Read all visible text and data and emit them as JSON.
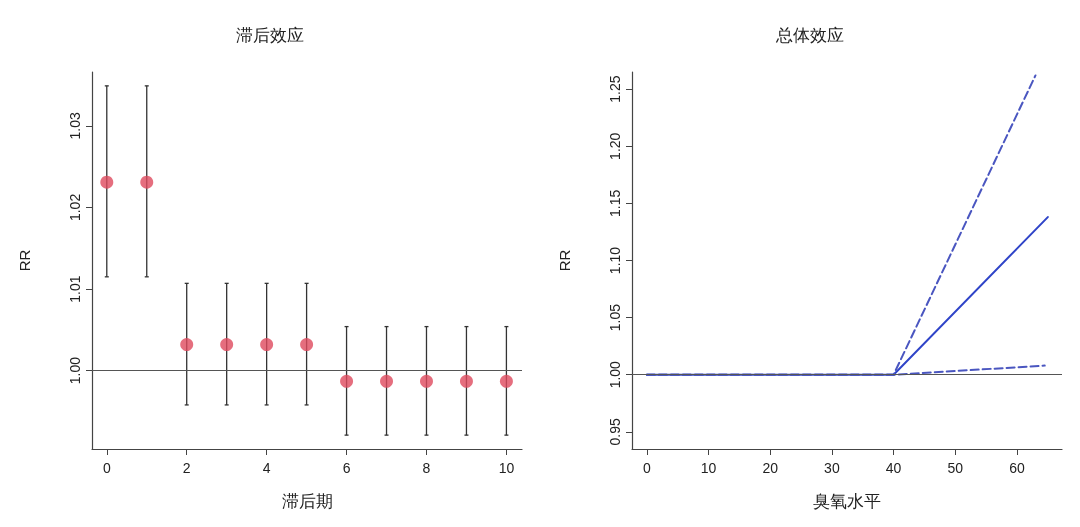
{
  "chart_data": [
    {
      "type": "scatter",
      "title": "滞后效应",
      "xlabel": "滞后期",
      "ylabel": "RR",
      "x": [
        0,
        1,
        2,
        3,
        4,
        5,
        6,
        7,
        8,
        9,
        10
      ],
      "values": [
        1.0231,
        1.0231,
        1.0032,
        1.0032,
        1.0032,
        1.0032,
        0.9987,
        0.9987,
        0.9987,
        0.9987,
        0.9987
      ],
      "errors": [
        [
          1.0115,
          1.0349
        ],
        [
          1.0115,
          1.0349
        ],
        [
          0.9958,
          1.0107
        ],
        [
          0.9958,
          1.0107
        ],
        [
          0.9958,
          1.0107
        ],
        [
          0.9958,
          1.0107
        ],
        [
          0.9921,
          1.0054
        ],
        [
          0.9921,
          1.0054
        ],
        [
          0.9921,
          1.0054
        ],
        [
          0.9921,
          1.0054
        ],
        [
          0.9921,
          1.0054
        ]
      ],
      "color": "#df4a5e",
      "marker": "circle",
      "xlim": [
        -0.37,
        10.39
      ],
      "xticks": [
        0,
        2,
        4,
        6,
        8,
        10
      ],
      "ylim": [
        0.9904,
        1.0366
      ],
      "yticks": [
        {
          "value": 1.0,
          "label": "1.00"
        },
        1.01,
        1.02,
        1.03
      ],
      "ref_lines": [
        {
          "axis": "y",
          "value": 1.0,
          "color": "#555555"
        }
      ]
    },
    {
      "type": "line",
      "title": "总体效应",
      "xlabel": "臭氧水平",
      "ylabel": "RR",
      "series": [
        {
          "color": "#2f44c8",
          "x": [
            0,
            40,
            65
          ],
          "values": [
            1.0,
            1.0,
            1.138
          ],
          "line_style": "solid"
        },
        {
          "color": "#4a56c0",
          "x": [
            0,
            40,
            63
          ],
          "values": [
            1.0,
            1.0,
            1.262
          ],
          "line_style": "dashed"
        },
        {
          "color": "#4a56c0",
          "x": [
            0,
            40,
            64.5
          ],
          "values": [
            1.0,
            1.0,
            1.008
          ],
          "line_style": "dashed"
        }
      ],
      "marker": "none",
      "xlim": [
        -2.4,
        67.3
      ],
      "xticks": [
        0,
        10,
        20,
        30,
        40,
        50,
        60
      ],
      "ylim": [
        0.935,
        1.265
      ],
      "yticks": [
        0.95,
        {
          "value": 1.0,
          "label": "1.00"
        },
        1.05,
        {
          "value": 1.1,
          "label": "1.10"
        },
        1.15,
        {
          "value": 1.2,
          "label": "1.20"
        },
        1.25
      ],
      "ref_lines": [
        {
          "axis": "y",
          "value": 1.0,
          "color": "#555555"
        }
      ]
    }
  ]
}
